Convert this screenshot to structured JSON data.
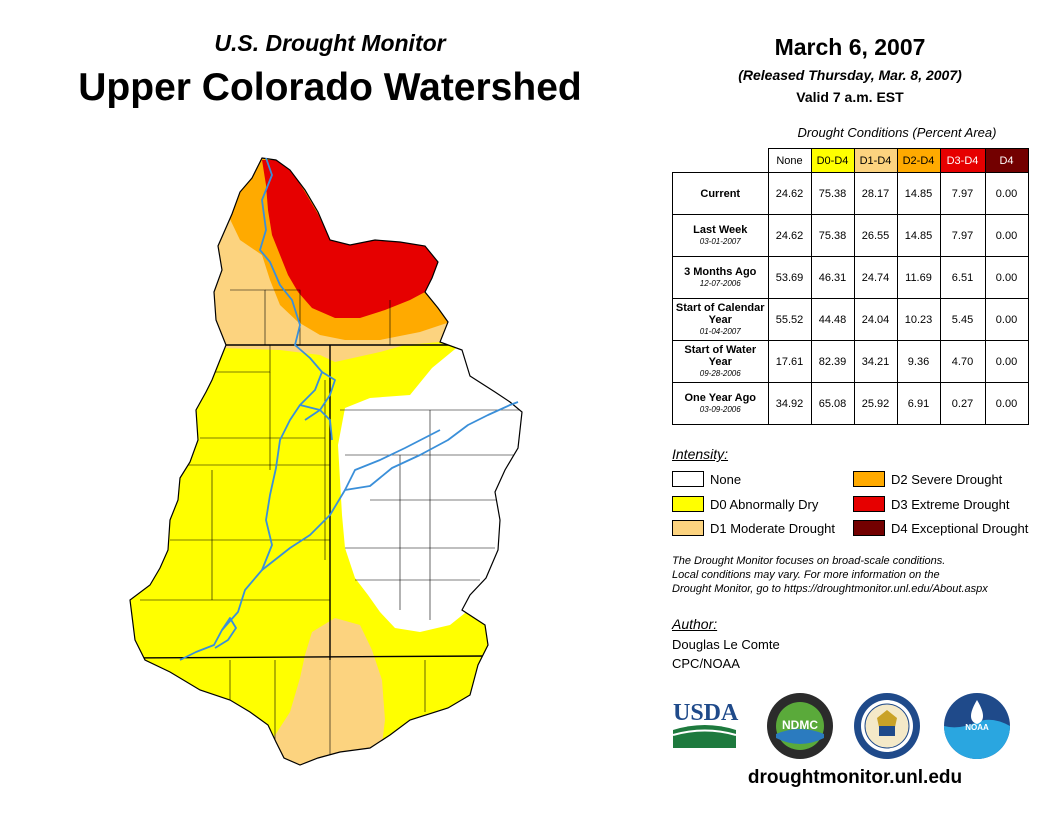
{
  "header": {
    "supertitle": "U.S. Drought Monitor",
    "title": "Upper Colorado Watershed",
    "date": "March 6, 2007",
    "released": "(Released Thursday, Mar. 8, 2007)",
    "valid": "Valid 7 a.m. EST"
  },
  "table": {
    "title": "Drought Conditions (Percent Area)",
    "columns": [
      "None",
      "D0-D4",
      "D1-D4",
      "D2-D4",
      "D3-D4",
      "D4"
    ],
    "column_colors": [
      "#ffffff",
      "#ffff00",
      "#fcd37f",
      "#ffaa00",
      "#e60000",
      "#730000"
    ],
    "rows": [
      {
        "label": "Current",
        "sub": "",
        "values": [
          "24.62",
          "75.38",
          "28.17",
          "14.85",
          "7.97",
          "0.00"
        ]
      },
      {
        "label": "Last Week",
        "sub": "03-01-2007",
        "values": [
          "24.62",
          "75.38",
          "26.55",
          "14.85",
          "7.97",
          "0.00"
        ]
      },
      {
        "label": "3 Months Ago",
        "sub": "12-07-2006",
        "values": [
          "53.69",
          "46.31",
          "24.74",
          "11.69",
          "6.51",
          "0.00"
        ]
      },
      {
        "label": "Start of Calendar Year",
        "sub": "01-04-2007",
        "values": [
          "55.52",
          "44.48",
          "24.04",
          "10.23",
          "5.45",
          "0.00"
        ]
      },
      {
        "label": "Start of Water Year",
        "sub": "09-28-2006",
        "values": [
          "17.61",
          "82.39",
          "34.21",
          "9.36",
          "4.70",
          "0.00"
        ]
      },
      {
        "label": "One Year Ago",
        "sub": "03-09-2006",
        "values": [
          "34.92",
          "65.08",
          "25.92",
          "6.91",
          "0.27",
          "0.00"
        ]
      }
    ]
  },
  "legend": {
    "title": "Intensity:",
    "items": [
      {
        "label": "None",
        "color": "#ffffff"
      },
      {
        "label": "D0 Abnormally Dry",
        "color": "#ffff00"
      },
      {
        "label": "D1 Moderate Drought",
        "color": "#fcd37f"
      },
      {
        "label": "D2 Severe Drought",
        "color": "#ffaa00"
      },
      {
        "label": "D3 Extreme Drought",
        "color": "#e60000"
      },
      {
        "label": "D4 Exceptional Drought",
        "color": "#730000"
      }
    ]
  },
  "note": {
    "line1": "The Drought Monitor focuses on broad-scale conditions.",
    "line2": "Local conditions may vary. For more information on the",
    "line3": "Drought Monitor, go to https://droughtmonitor.unl.edu/About.aspx"
  },
  "author": {
    "label": "Author:",
    "name": "Douglas Le Comte",
    "org": "CPC/NOAA"
  },
  "logos": {
    "usda": "USDA",
    "ndmc": "NDMC",
    "noaa": "NOAA"
  },
  "site": "droughtmonitor.unl.edu",
  "map": {
    "river_color": "#3a8fd9",
    "border_color": "#000000"
  }
}
